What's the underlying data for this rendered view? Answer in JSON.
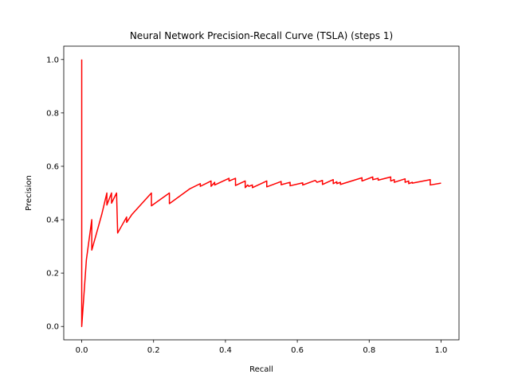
{
  "chart_data": {
    "type": "line",
    "title": "Neural Network Precision-Recall Curve (TSLA) (steps 1)",
    "xlabel": "Recall",
    "ylabel": "Precision",
    "xlim": [
      -0.05,
      1.05
    ],
    "ylim": [
      -0.05,
      1.05
    ],
    "xticks": [
      0.0,
      0.2,
      0.4,
      0.6,
      0.8,
      1.0
    ],
    "xtick_labels": [
      "0.0",
      "0.2",
      "0.4",
      "0.6",
      "0.8",
      "1.0"
    ],
    "yticks": [
      0.0,
      0.2,
      0.4,
      0.6,
      0.8,
      1.0
    ],
    "ytick_labels": [
      "0.0",
      "0.2",
      "0.4",
      "0.6",
      "0.8",
      "1.0"
    ],
    "grid": false,
    "legend": null,
    "series": [
      {
        "color": "#ff0000",
        "points": [
          [
            0.0,
            1.0
          ],
          [
            0.0,
            0.0
          ],
          [
            0.013,
            0.25
          ],
          [
            0.028,
            0.4
          ],
          [
            0.028,
            0.286
          ],
          [
            0.042,
            0.353
          ],
          [
            0.056,
            0.421
          ],
          [
            0.07,
            0.5
          ],
          [
            0.07,
            0.455
          ],
          [
            0.083,
            0.5
          ],
          [
            0.083,
            0.462
          ],
          [
            0.097,
            0.5
          ],
          [
            0.1,
            0.35
          ],
          [
            0.125,
            0.41
          ],
          [
            0.125,
            0.39
          ],
          [
            0.14,
            0.42
          ],
          [
            0.194,
            0.5
          ],
          [
            0.194,
            0.452
          ],
          [
            0.244,
            0.5
          ],
          [
            0.244,
            0.46
          ],
          [
            0.3,
            0.515
          ],
          [
            0.33,
            0.535
          ],
          [
            0.33,
            0.525
          ],
          [
            0.36,
            0.545
          ],
          [
            0.36,
            0.525
          ],
          [
            0.37,
            0.54
          ],
          [
            0.37,
            0.53
          ],
          [
            0.41,
            0.555
          ],
          [
            0.41,
            0.545
          ],
          [
            0.428,
            0.555
          ],
          [
            0.428,
            0.528
          ],
          [
            0.455,
            0.545
          ],
          [
            0.455,
            0.52
          ],
          [
            0.462,
            0.53
          ],
          [
            0.465,
            0.525
          ],
          [
            0.475,
            0.53
          ],
          [
            0.475,
            0.52
          ],
          [
            0.515,
            0.545
          ],
          [
            0.515,
            0.523
          ],
          [
            0.555,
            0.543
          ],
          [
            0.555,
            0.531
          ],
          [
            0.58,
            0.54
          ],
          [
            0.58,
            0.527
          ],
          [
            0.615,
            0.538
          ],
          [
            0.615,
            0.53
          ],
          [
            0.65,
            0.547
          ],
          [
            0.655,
            0.54
          ],
          [
            0.67,
            0.547
          ],
          [
            0.67,
            0.532
          ],
          [
            0.7,
            0.55
          ],
          [
            0.7,
            0.535
          ],
          [
            0.71,
            0.542
          ],
          [
            0.71,
            0.535
          ],
          [
            0.72,
            0.54
          ],
          [
            0.72,
            0.532
          ],
          [
            0.78,
            0.557
          ],
          [
            0.78,
            0.545
          ],
          [
            0.81,
            0.56
          ],
          [
            0.81,
            0.55
          ],
          [
            0.825,
            0.555
          ],
          [
            0.825,
            0.548
          ],
          [
            0.86,
            0.56
          ],
          [
            0.86,
            0.545
          ],
          [
            0.87,
            0.55
          ],
          [
            0.87,
            0.54
          ],
          [
            0.9,
            0.553
          ],
          [
            0.9,
            0.54
          ],
          [
            0.91,
            0.545
          ],
          [
            0.91,
            0.535
          ],
          [
            0.92,
            0.54
          ],
          [
            0.92,
            0.537
          ],
          [
            0.97,
            0.55
          ],
          [
            0.97,
            0.53
          ],
          [
            1.0,
            0.537
          ]
        ]
      }
    ]
  }
}
